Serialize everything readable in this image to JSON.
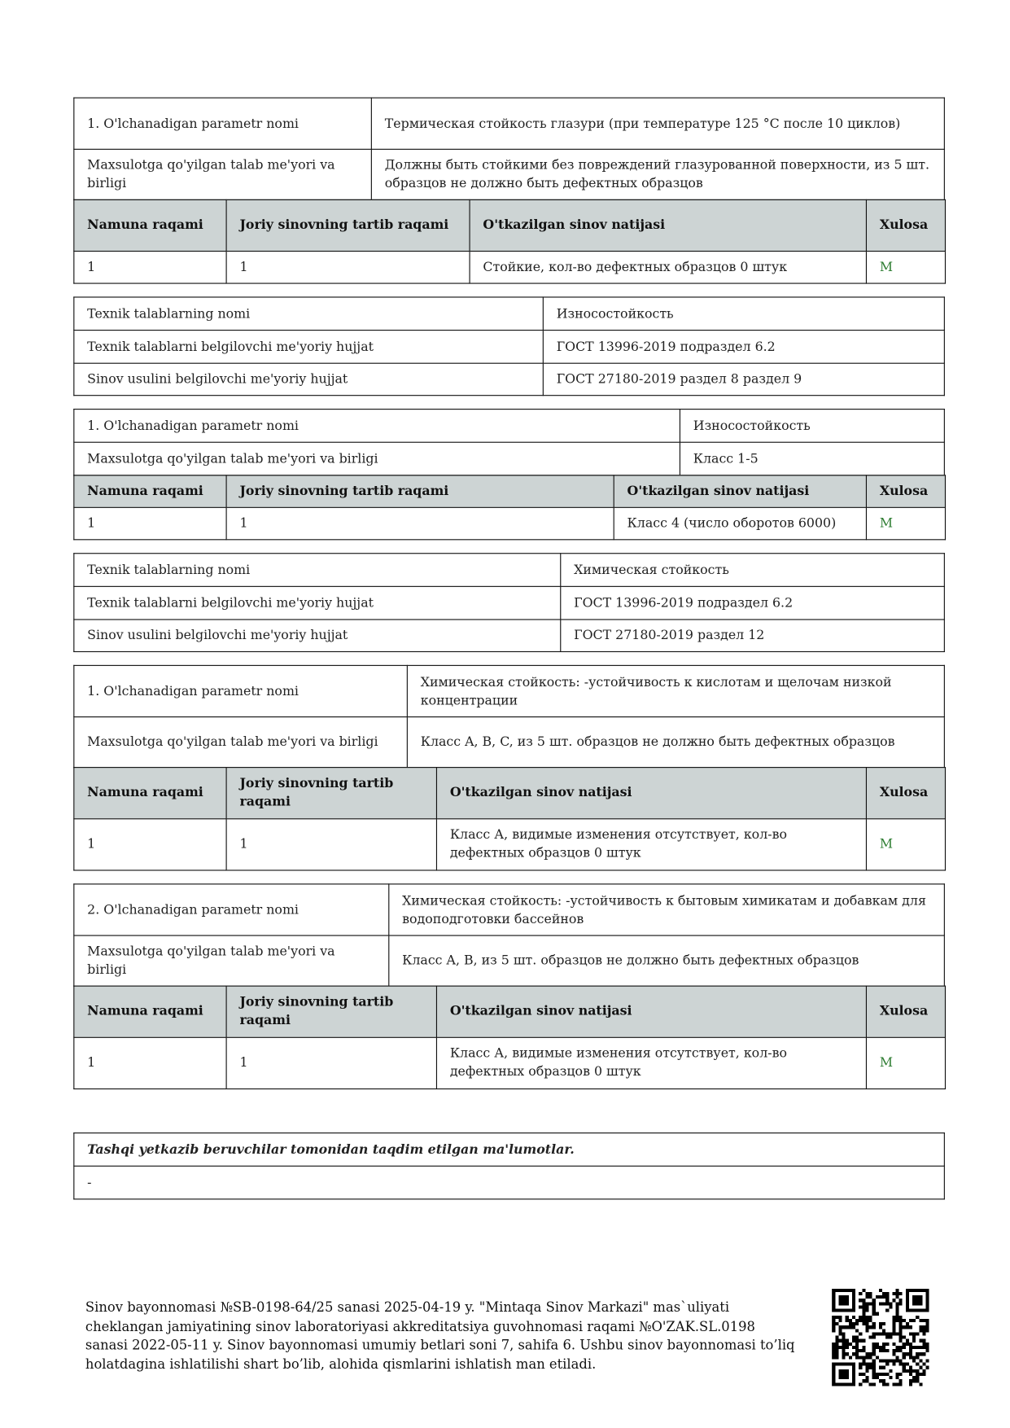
{
  "blocks": [
    {
      "kind": "param",
      "rows": [
        [
          "1. O'lchanadigan parametr nomi",
          "Термическая стойкость глазури (при температуре 125 °C после 10 циклов)"
        ],
        [
          "Maxsulotga qo'yilgan talab me'yori va birligi",
          "Должны быть стойкими без повреждений глазурованной поверхности, из 5 шт. образцов не должно быть дефектных образцов"
        ]
      ],
      "header": [
        "Namuna raqami",
        "Joriy sinovning tartib raqami",
        "O'tkazilgan sinov natijasi",
        "Xulosa"
      ],
      "result": [
        "1",
        "1",
        "Стойкие, кол-во дефектных образцов 0 штук",
        "M"
      ]
    },
    {
      "kind": "tech",
      "rows": [
        [
          "Texnik talablarning nomi",
          "Износостойкость"
        ],
        [
          "Texnik talablarni belgilovchi me'yoriy hujjat",
          "ГОСТ 13996-2019 подраздел 6.2"
        ],
        [
          "Sinov usulini belgilovchi me'yoriy hujjat",
          "ГОСТ 27180-2019 раздел 8 раздел 9"
        ]
      ]
    },
    {
      "kind": "param",
      "rows": [
        [
          "1. O'lchanadigan parametr nomi",
          "Износостойкость"
        ],
        [
          "Maxsulotga qo'yilgan talab me'yori va birligi",
          "Класс 1-5"
        ]
      ],
      "header": [
        "Namuna raqami",
        "Joriy sinovning tartib raqami",
        "O'tkazilgan sinov natijasi",
        "Xulosa"
      ],
      "result": [
        "1",
        "1",
        "Класс 4 (число оборотов 6000)",
        "M"
      ]
    },
    {
      "kind": "tech",
      "rows": [
        [
          "Texnik talablarning nomi",
          "Химическая стойкость"
        ],
        [
          "Texnik talablarni belgilovchi me'yoriy hujjat",
          "ГОСТ 13996-2019 подраздел 6.2"
        ],
        [
          "Sinov usulini belgilovchi me'yoriy hujjat",
          "ГОСТ 27180-2019 раздел 12"
        ]
      ]
    },
    {
      "kind": "param",
      "rows": [
        [
          "1. O'lchanadigan parametr nomi",
          "Химическая стойкость: -устойчивость к кислотам и щелочам низкой концентрации"
        ],
        [
          "Maxsulotga qo'yilgan talab me'yori va birligi",
          "Класс A, B, C, из 5 шт. образцов не должно быть дефектных образцов"
        ]
      ],
      "header": [
        "Namuna raqami",
        "Joriy sinovning tartib raqami",
        "O'tkazilgan sinov natijasi",
        "Xulosa"
      ],
      "result": [
        "1",
        "1",
        "Класс А, видимые изменения отсутствует, кол-во дефектных образцов 0 штук",
        "M"
      ]
    },
    {
      "kind": "param",
      "rows": [
        [
          "2. O'lchanadigan parametr nomi",
          "Химическая стойкость: -устойчивость к бытовым химикатам и добавкам для водоподготовки бассейнов"
        ],
        [
          "Maxsulotga qo'yilgan talab me'yori va birligi",
          "Класс A, B, из 5 шт. образцов не должно быть дефектных образцов"
        ]
      ],
      "header": [
        "Namuna raqami",
        "Joriy sinovning tartib raqami",
        "O'tkazilgan sinov natijasi",
        "Xulosa"
      ],
      "result": [
        "1",
        "1",
        "Класс А, видимые изменения отсутствует, кол-во дефектных образцов 0 штук",
        "M"
      ]
    }
  ],
  "external_info": {
    "title": "Tashqi yetkazib beruvchilar tomonidan taqdim etilgan ma'lumotlar.",
    "value": "-"
  },
  "footer": {
    "text": "Sinov bayonnomasi №SB-0198-64/25 sanasi 2025-04-19 y. \"Mintaqa Sinov Markazi\" mas`uliyati cheklangan jamiyatining sinov laboratoriyasi akkreditatsiya guvohnomasi raqami №O'ZAK.SL.0198 sanasi 2022-05-11 y. Sinov bayonnomasi umumiy betlari soni 7, sahifa 6. Ushbu sinov bayonnomasi to’liq holatdagina ishlatilishi shart bo’lib, alohida qismlarini ishlatish man etiladi."
  },
  "colors": {
    "header_bg": "#cdd4d4",
    "conclusion": "#2e7d32"
  },
  "icons": {
    "qr": "qr-code"
  }
}
